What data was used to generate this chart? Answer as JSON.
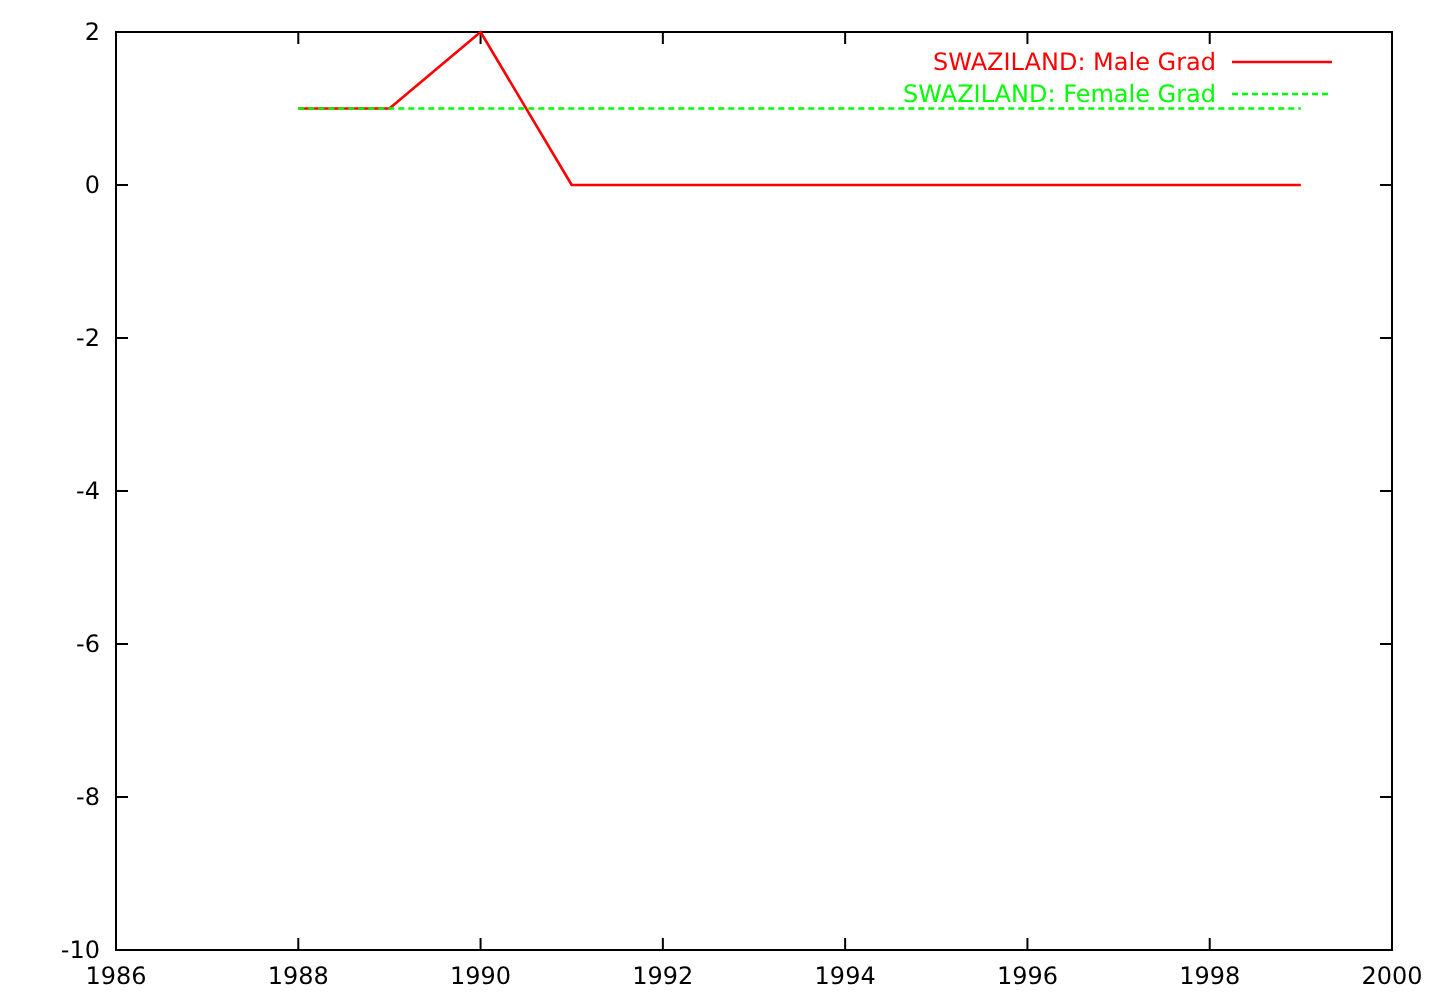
{
  "chart_data": {
    "type": "line",
    "x": [
      1988,
      1989,
      1990,
      1991,
      1992,
      1993,
      1994,
      1995,
      1996,
      1997,
      1998,
      1999
    ],
    "series": [
      {
        "name": "SWAZILAND: Male Grad",
        "color": "#ff0000",
        "values": [
          1,
          1,
          2,
          0,
          0,
          0,
          0,
          0,
          0,
          0,
          0,
          0
        ],
        "line_style": "solid"
      },
      {
        "name": "SWAZILAND: Female Grad",
        "color": "#00ff00",
        "values": [
          1,
          1,
          1,
          1,
          1,
          1,
          1,
          1,
          1,
          1,
          1,
          1
        ],
        "line_style": "dashed"
      }
    ],
    "xlim": [
      1986,
      2000
    ],
    "xticks": [
      1986,
      1988,
      1990,
      1992,
      1994,
      1996,
      1998,
      2000
    ],
    "ylim": [
      -10,
      2
    ],
    "yticks": [
      -10,
      -8,
      -6,
      -4,
      -2,
      0,
      2
    ],
    "legend": "top right",
    "grid": false,
    "marker": "none"
  }
}
